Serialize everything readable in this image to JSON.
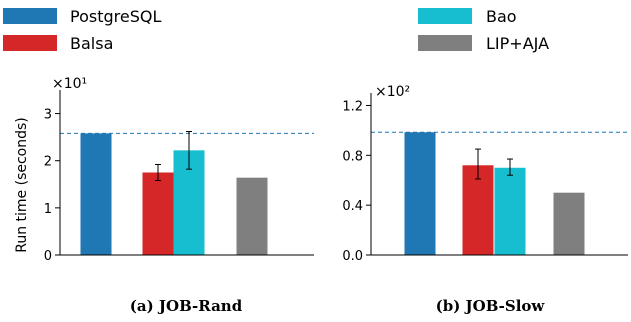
{
  "legend": [
    {
      "name": "PostgreSQL",
      "color": "#1f77b4"
    },
    {
      "name": "Balsa",
      "color": "#d62728"
    },
    {
      "name": "Bao",
      "color": "#17becf"
    },
    {
      "name": "LIP+AJA",
      "color": "#7f7f7f"
    }
  ],
  "chart_data": [
    {
      "type": "bar",
      "caption": "(a) JOB-Rand",
      "ylabel": "Run time (seconds)",
      "y_multiplier": "×10¹",
      "ylim": [
        0,
        3.5
      ],
      "yticks": [
        "0",
        "1",
        "2",
        "3"
      ],
      "yticks_values": [
        0,
        1,
        2,
        3
      ],
      "reference_line": 2.58,
      "categories": [
        "PostgreSQL",
        "Balsa",
        "Bao",
        "LIP+AJA"
      ],
      "values": [
        2.58,
        1.75,
        2.22,
        1.64
      ],
      "errors": [
        null,
        [
          1.58,
          1.92
        ],
        [
          1.82,
          2.62
        ],
        null
      ]
    },
    {
      "type": "bar",
      "caption": "(b) JOB-Slow",
      "ylabel": "",
      "y_multiplier": "×10²",
      "ylim": [
        0,
        1.3
      ],
      "yticks": [
        "0.0",
        "0.4",
        "0.8",
        "1.2"
      ],
      "yticks_values": [
        0,
        0.4,
        0.8,
        1.2
      ],
      "reference_line": 0.985,
      "categories": [
        "PostgreSQL",
        "Balsa",
        "Bao",
        "LIP+AJA"
      ],
      "values": [
        0.985,
        0.72,
        0.7,
        0.5
      ],
      "errors": [
        null,
        [
          0.61,
          0.85
        ],
        [
          0.64,
          0.77
        ],
        null
      ]
    }
  ]
}
